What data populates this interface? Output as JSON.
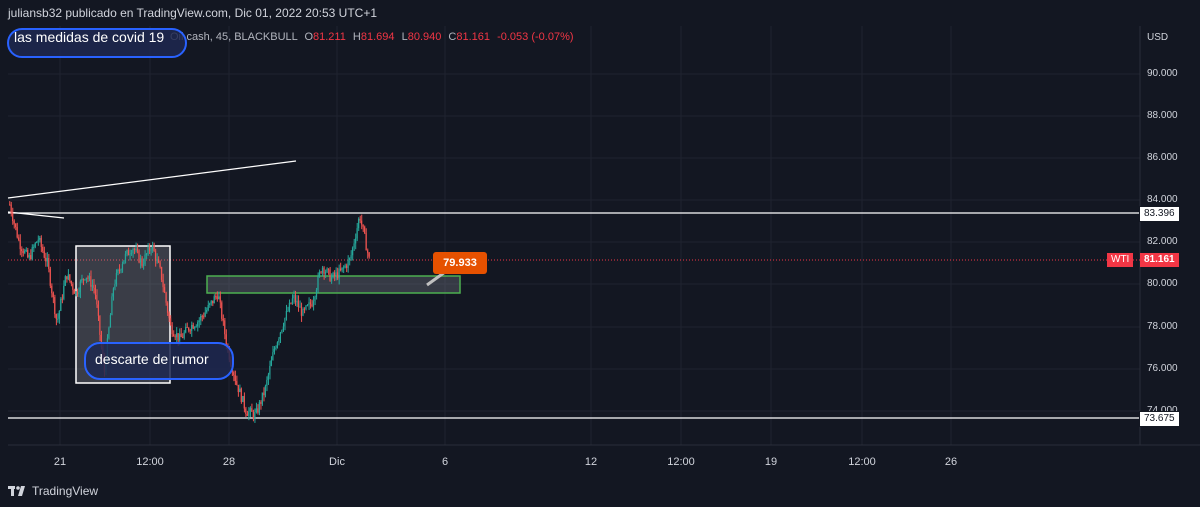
{
  "header": {
    "published": "juliansb32 publicado en TradingView.com, Dic 01, 2022 20:53 UTC+1"
  },
  "legend": {
    "symbol_partial": "Oil cash, 45, BLACKBULL",
    "o_label": "O",
    "o_value": "81.211",
    "h_label": "H",
    "h_value": "81.694",
    "l_label": "L",
    "l_value": "80.940",
    "c_label": "C",
    "c_value": "81.161",
    "change": "-0.053 (-0.07%)"
  },
  "notes": {
    "covid": "las medidas de covid 19",
    "rumor": "descarte de rumor"
  },
  "price_axis": {
    "currency": "USD",
    "ticks": [
      "90.000",
      "88.000",
      "86.000",
      "84.000",
      "82.000",
      "80.000",
      "78.000",
      "76.000",
      "74.000"
    ]
  },
  "time_axis": {
    "ticks": [
      "21",
      "12:00",
      "28",
      "Dic",
      "6",
      "12",
      "12:00",
      "19",
      "12:00",
      "26"
    ]
  },
  "price_labels": {
    "upper_line": "83.396",
    "wti_label": "WTI",
    "wti_value": "81.161",
    "lower_line": "73.675",
    "orange_tag": "79.933"
  },
  "footer": {
    "brand": "TradingView"
  },
  "colors": {
    "background": "#131722",
    "up": "#26a69a",
    "down": "#ef5350",
    "price_red": "#f23645",
    "tag_orange": "#e65100",
    "zone_green": "#4caf50",
    "note_blue": "#2962ff"
  },
  "chart_data": {
    "type": "candlestick",
    "symbol": "WTI",
    "timeframe": "45",
    "ylim": [
      73.5,
      91.5
    ],
    "levels": [
      83.396,
      73.675
    ],
    "last_price": 81.161,
    "close_path": [
      {
        "x": "Nov 18",
        "y": 83.8
      },
      {
        "x": "Nov 18",
        "y": 82.0
      },
      {
        "x": "Nov 18",
        "y": 81.2
      },
      {
        "x": "Nov 19",
        "y": 82.2
      },
      {
        "x": "Nov 20",
        "y": 81.0
      },
      {
        "x": "Nov 21",
        "y": 78.2
      },
      {
        "x": "Nov 21",
        "y": 80.5
      },
      {
        "x": "Nov 21",
        "y": 79.6
      },
      {
        "x": "Nov 22",
        "y": 80.5
      },
      {
        "x": "Nov 22",
        "y": 79.8
      },
      {
        "x": "Nov 22",
        "y": 75.8
      },
      {
        "x": "Nov 23",
        "y": 80.0
      },
      {
        "x": "Nov 23",
        "y": 81.2
      },
      {
        "x": "Nov 23",
        "y": 81.8
      },
      {
        "x": "Nov 24",
        "y": 81.0
      },
      {
        "x": "Nov 24",
        "y": 81.9
      },
      {
        "x": "Nov 24",
        "y": 80.5
      },
      {
        "x": "Nov 25",
        "y": 78.0
      },
      {
        "x": "Nov 25",
        "y": 77.4
      },
      {
        "x": "Nov 26",
        "y": 78.0
      },
      {
        "x": "Nov 26",
        "y": 78.3
      },
      {
        "x": "Nov 27",
        "y": 78.9
      },
      {
        "x": "Nov 27",
        "y": 79.6
      },
      {
        "x": "Nov 27",
        "y": 77.0
      },
      {
        "x": "Nov 28",
        "y": 75.3
      },
      {
        "x": "Nov 28",
        "y": 74.0
      },
      {
        "x": "Nov 28",
        "y": 73.8
      },
      {
        "x": "Nov 29",
        "y": 75.0
      },
      {
        "x": "Nov 29",
        "y": 77.0
      },
      {
        "x": "Nov 29",
        "y": 78.3
      },
      {
        "x": "Nov 29",
        "y": 79.4
      },
      {
        "x": "Nov 30",
        "y": 78.6
      },
      {
        "x": "Nov 30",
        "y": 79.2
      },
      {
        "x": "Nov 30",
        "y": 80.9
      },
      {
        "x": "Nov 30",
        "y": 80.3
      },
      {
        "x": "Dic 1",
        "y": 80.6
      },
      {
        "x": "Dic 1",
        "y": 81.2
      },
      {
        "x": "Dic 1",
        "y": 83.3
      },
      {
        "x": "Dic 1",
        "y": 81.2
      }
    ]
  }
}
